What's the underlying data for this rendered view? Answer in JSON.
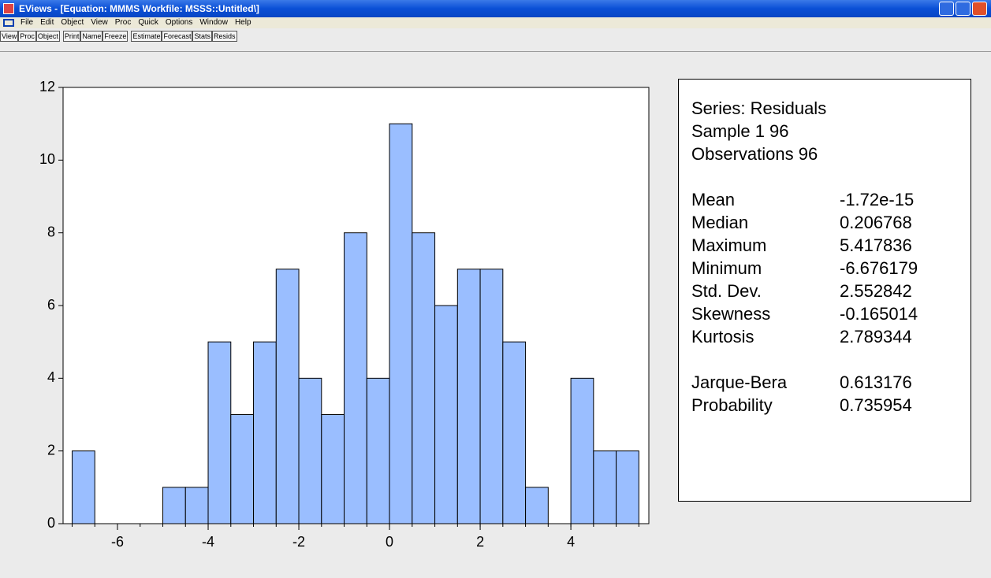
{
  "window": {
    "title": "EViews - [Equation: MMMS   Workfile: MSSS::Untitled\\]",
    "menu": [
      "File",
      "Edit",
      "Object",
      "View",
      "Proc",
      "Quick",
      "Options",
      "Window",
      "Help"
    ],
    "toolbar": [
      "View",
      "Proc",
      "Object",
      "Print",
      "Name",
      "Freeze",
      "Estimate",
      "Forecast",
      "Stats",
      "Resids"
    ]
  },
  "chart_data": {
    "type": "histogram",
    "bins": [
      -7,
      -6.5,
      -6,
      -5.5,
      -5,
      -4.5,
      -4,
      -3.5,
      -3,
      -2.5,
      -2,
      -1.5,
      -1,
      -0.5,
      0,
      0.5,
      1,
      1.5,
      2,
      2.5,
      3,
      3.5,
      4,
      4.5,
      5,
      5.5
    ],
    "values": [
      2,
      0,
      0,
      0,
      1,
      1,
      5,
      3,
      5,
      7,
      4,
      3,
      8,
      4,
      11,
      8,
      6,
      7,
      7,
      5,
      1,
      0,
      4,
      2,
      2
    ],
    "color": "#9abeff",
    "xlim": [
      -7.2,
      5.72
    ],
    "xticks": [
      -6,
      -4,
      -2,
      0,
      2,
      4
    ],
    "ylim": [
      0,
      12
    ],
    "yticks": [
      0,
      2,
      4,
      6,
      8,
      10,
      12
    ]
  },
  "stats": {
    "header": [
      "Series: Residuals",
      "Sample 1 96",
      "Observations 96"
    ],
    "rows": [
      [
        "Mean",
        "-1.72e-15"
      ],
      [
        "Median",
        "0.206768"
      ],
      [
        "Maximum",
        "5.417836"
      ],
      [
        "Minimum",
        "-6.676179"
      ],
      [
        "Std. Dev.",
        "2.552842"
      ],
      [
        "Skewness",
        "-0.165014"
      ],
      [
        "Kurtosis",
        "2.789344"
      ]
    ],
    "tests": [
      [
        "Jarque-Bera",
        "0.613176"
      ],
      [
        "Probability",
        "0.735954"
      ]
    ]
  }
}
